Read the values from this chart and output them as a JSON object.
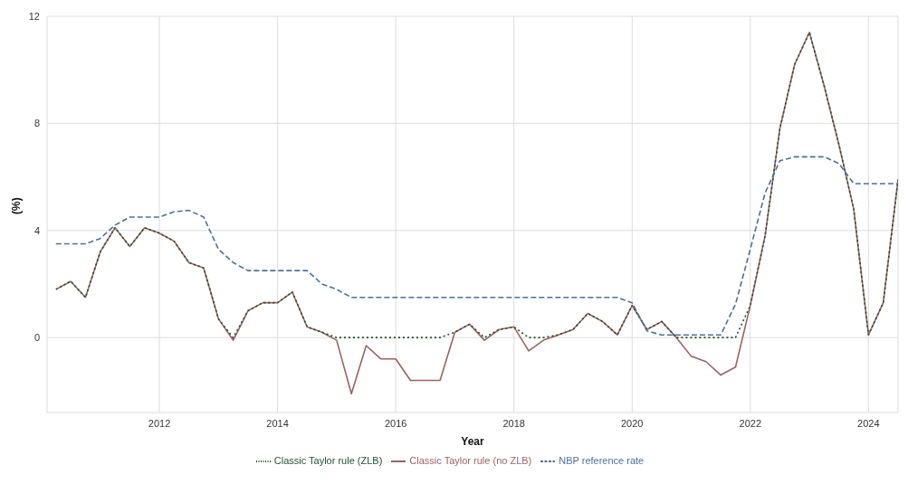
{
  "chart_data": {
    "type": "line",
    "xlabel": "Year",
    "ylabel": "(%)",
    "x": [
      2010.25,
      2010.5,
      2010.75,
      2011,
      2011.25,
      2011.5,
      2011.75,
      2012,
      2012.25,
      2012.5,
      2012.75,
      2013,
      2013.25,
      2013.5,
      2013.75,
      2014,
      2014.25,
      2014.5,
      2014.75,
      2015,
      2015.25,
      2015.5,
      2015.75,
      2016,
      2016.25,
      2016.5,
      2016.75,
      2017,
      2017.25,
      2017.5,
      2017.75,
      2018,
      2018.25,
      2018.5,
      2018.75,
      2019,
      2019.25,
      2019.5,
      2019.75,
      2020,
      2020.25,
      2020.5,
      2020.75,
      2021,
      2021.25,
      2021.5,
      2021.75,
      2022,
      2022.25,
      2022.5,
      2022.75,
      2023,
      2023.25,
      2023.5,
      2023.75,
      2024,
      2024.25,
      2024.5
    ],
    "series": [
      {
        "name": "Classic Taylor rule (no ZLB)",
        "color": "#9c6262",
        "line_style": "solid",
        "values": [
          1.8,
          2.1,
          1.5,
          3.2,
          4.1,
          3.4,
          4.1,
          3.9,
          3.6,
          2.8,
          2.6,
          0.7,
          -0.1,
          1.0,
          1.3,
          1.3,
          1.7,
          0.4,
          0.2,
          -0.1,
          -2.1,
          -0.3,
          -0.8,
          -0.8,
          -1.6,
          -1.6,
          -1.6,
          0.2,
          0.5,
          -0.1,
          0.3,
          0.4,
          -0.5,
          -0.1,
          0.1,
          0.3,
          0.9,
          0.6,
          0.1,
          1.2,
          0.3,
          0.6,
          0.0,
          -0.7,
          -0.9,
          -1.4,
          -1.1,
          1.2,
          3.8,
          7.8,
          10.2,
          11.4,
          9.4,
          7.2,
          4.8,
          0.1,
          1.3,
          5.9
        ]
      },
      {
        "name": "Classic Taylor rule (ZLB)",
        "color": "#1f4f33",
        "line_style": "dotted",
        "values": [
          1.8,
          2.1,
          1.5,
          3.2,
          4.1,
          3.4,
          4.1,
          3.9,
          3.6,
          2.8,
          2.6,
          0.7,
          0.0,
          1.0,
          1.3,
          1.3,
          1.7,
          0.4,
          0.2,
          0.0,
          0.0,
          0.0,
          0.0,
          0.0,
          0.0,
          0.0,
          0.0,
          0.2,
          0.5,
          0.0,
          0.3,
          0.4,
          0.0,
          0.0,
          0.1,
          0.3,
          0.9,
          0.6,
          0.1,
          1.2,
          0.3,
          0.6,
          0.0,
          0.0,
          0.0,
          0.0,
          0.0,
          1.2,
          3.8,
          7.8,
          10.2,
          11.4,
          9.4,
          7.2,
          4.8,
          0.1,
          1.3,
          5.9
        ]
      },
      {
        "name": "NBP reference rate",
        "color": "#4f6f99",
        "line_style": "dashed",
        "values": [
          3.5,
          3.5,
          3.5,
          3.7,
          4.2,
          4.5,
          4.5,
          4.5,
          4.7,
          4.75,
          4.5,
          3.3,
          2.8,
          2.5,
          2.5,
          2.5,
          2.5,
          2.5,
          2.0,
          1.8,
          1.5,
          1.5,
          1.5,
          1.5,
          1.5,
          1.5,
          1.5,
          1.5,
          1.5,
          1.5,
          1.5,
          1.5,
          1.5,
          1.5,
          1.5,
          1.5,
          1.5,
          1.5,
          1.5,
          1.3,
          0.25,
          0.1,
          0.1,
          0.1,
          0.1,
          0.1,
          1.25,
          3.3,
          5.4,
          6.6,
          6.75,
          6.75,
          6.75,
          6.5,
          5.75,
          5.75,
          5.75,
          5.75
        ]
      }
    ],
    "xlim": [
      2010.1,
      2024.5
    ],
    "xticks": [
      2012,
      2014,
      2016,
      2018,
      2020,
      2022,
      2024
    ],
    "ylim": [
      -2.8,
      12
    ],
    "yticks": [
      0,
      4,
      8,
      12
    ],
    "grid": true,
    "legend": "bottom",
    "marker": "none"
  }
}
